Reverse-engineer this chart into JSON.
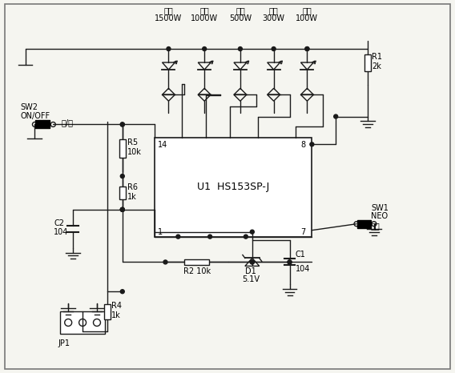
{
  "bg_color": "#f5f5f0",
  "line_color": "#1a1a1a",
  "text_color": "#000000",
  "figsize": [
    5.68,
    4.66
  ],
  "dpi": 100,
  "ic_label": "U1  HS153SP-J",
  "triac_labels": [
    "煌炒",
    "火锅",
    "蘸煮",
    "慢炎",
    "热奶"
  ],
  "triac_watts": [
    "1500W",
    "1000W",
    "500W",
    "300W",
    "100W"
  ]
}
